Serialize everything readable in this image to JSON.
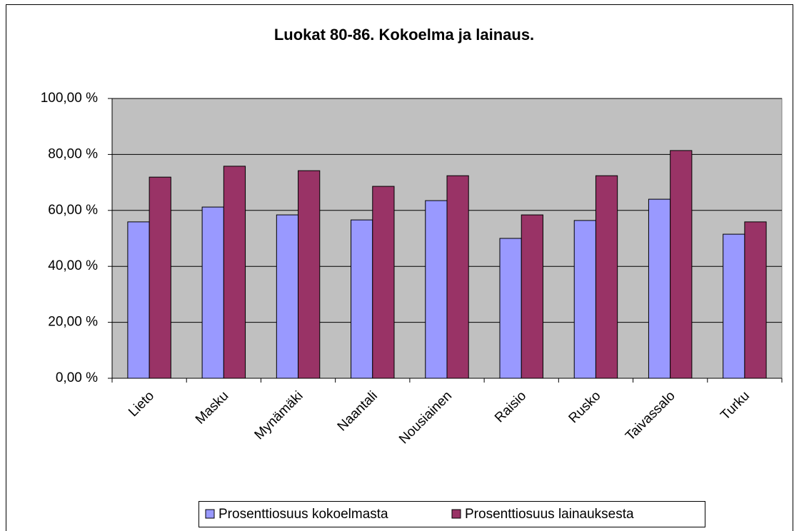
{
  "chart_data": {
    "type": "bar",
    "title": "Luokat 80-86. Kokoelma ja lainaus.",
    "categories": [
      "Lieto",
      "Masku",
      "Mynämäki",
      "Naantali",
      "Nousiainen",
      "Raisio",
      "Rusko",
      "Taivassalo",
      "Turku"
    ],
    "series": [
      {
        "name": "Prosenttiosuus kokoelmasta",
        "color": "#9999ff",
        "values": [
          55.9,
          61.2,
          58.4,
          56.6,
          63.5,
          50.0,
          56.4,
          64.0,
          51.5
        ]
      },
      {
        "name": "Prosenttiosuus lainauksesta",
        "color": "#993366",
        "values": [
          71.9,
          75.8,
          74.2,
          68.6,
          72.4,
          58.4,
          72.4,
          81.4,
          55.9
        ]
      }
    ],
    "ylim": [
      0,
      100
    ],
    "yticks": [
      {
        "value": 0,
        "label": "0,00 %"
      },
      {
        "value": 20,
        "label": "20,00 %"
      },
      {
        "value": 40,
        "label": "40,00 %"
      },
      {
        "value": 60,
        "label": "60,00 %"
      },
      {
        "value": 80,
        "label": "80,00 %"
      },
      {
        "value": 100,
        "label": "100,00 %"
      }
    ],
    "grid": true,
    "plot_background": "#c0c0c0",
    "legend": "bottom"
  }
}
